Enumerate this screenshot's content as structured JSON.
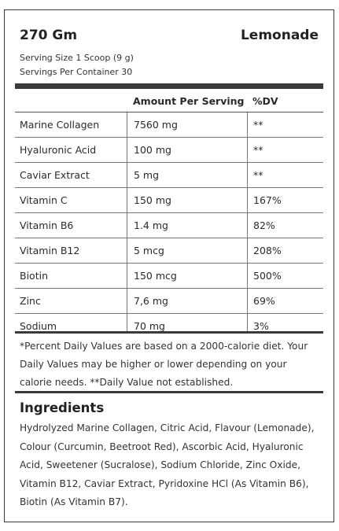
{
  "header": {
    "net_weight": "270 Gm",
    "flavour": "Lemonade",
    "serving_size": "Serving Size 1 Scoop (9 g)",
    "servings_per_container": "Servings Per Container 30"
  },
  "table": {
    "columns": [
      "",
      "Amount Per Serving",
      "%DV"
    ],
    "rows": [
      {
        "name": "Marine Collagen",
        "amount": "7560 mg",
        "dv": "**"
      },
      {
        "name": "Hyaluronic Acid",
        "amount": "100 mg",
        "dv": "**"
      },
      {
        "name": "Caviar Extract",
        "amount": "5 mg",
        "dv": "**"
      },
      {
        "name": "Vitamin C",
        "amount": "150 mg",
        "dv": "167%"
      },
      {
        "name": "Vitamin B6",
        "amount": "1.4 mg",
        "dv": "82%"
      },
      {
        "name": "Vitamin B12",
        "amount": "5 mcg",
        "dv": "208%"
      },
      {
        "name": "Biotin",
        "amount": "150 mcg",
        "dv": "500%"
      },
      {
        "name": "Zinc",
        "amount": "7,6 mg",
        "dv": "69%"
      },
      {
        "name": "Sodium",
        "amount": "70 mg",
        "dv": "3%"
      }
    ]
  },
  "footnote": "*Percent Daily Values are based on a 2000-calorie diet. Your Daily Values may be higher or lower depending on your calorie needs. **Daily Value not established.",
  "ingredients": {
    "title": "Ingredients",
    "text": "Hydrolyzed Marine Collagen, Citric Acid, Flavour (Lemonade), Colour (Curcumin, Beetroot Red), Ascorbic Acid, Hyaluronic Acid, Sweetener (Sucralose), Sodium Chloride, Zinc Oxide, Vitamin B12, Caviar Extract, Pyridoxine HCl (As Vitamin B6), Biotin (As Vitamin B7)."
  }
}
